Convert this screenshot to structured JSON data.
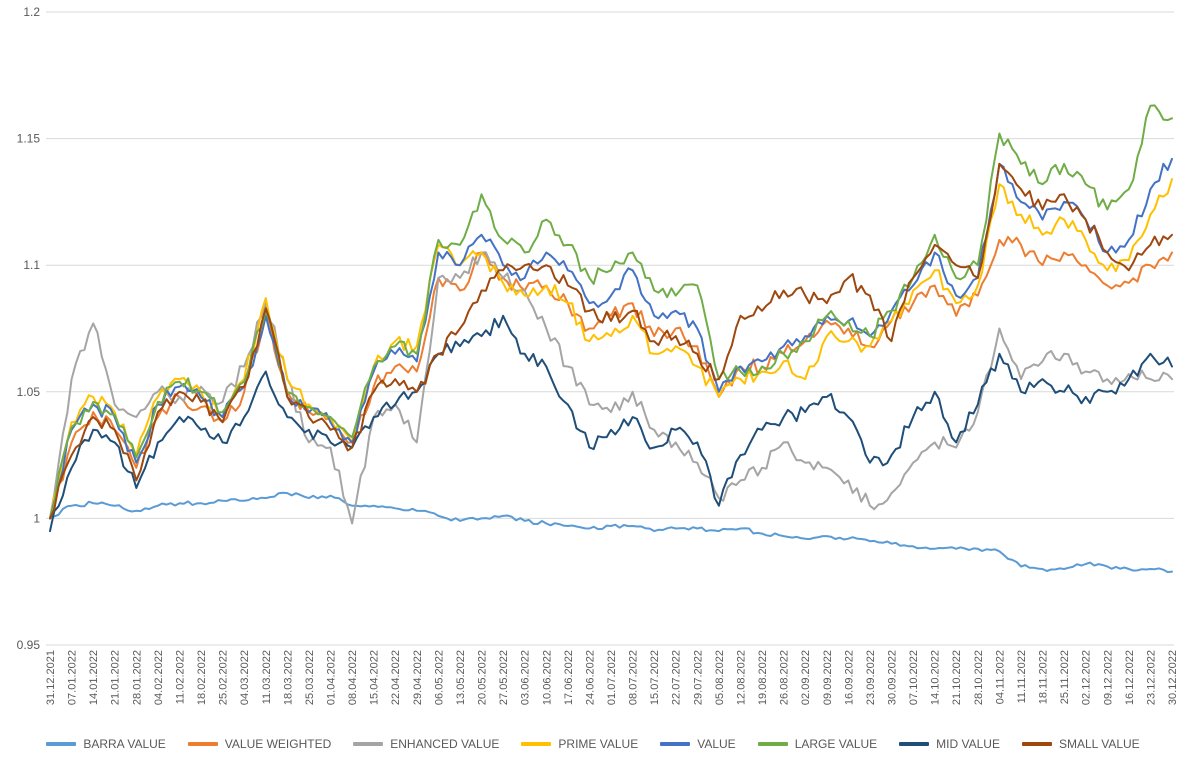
{
  "chart": {
    "background": "#FFFFFF",
    "grid_color": "#D9D9D9",
    "axis_label_color": "#595959",
    "legend_label_color": "#595959"
  },
  "chart_data": {
    "type": "line",
    "title": "",
    "xlabel": "",
    "ylabel": "",
    "grid": "horizontal",
    "legend_position": "bottom",
    "x_tick_rotation": -90,
    "ylim": [
      0.95,
      1.2
    ],
    "y_ticks": [
      0.95,
      1.0,
      1.05,
      1.1,
      1.15,
      1.2
    ],
    "y_tick_labels": [
      "0.95",
      "1",
      "1.05",
      "1.1",
      "1.15",
      "1.2"
    ],
    "x": [
      "31.12.2021",
      "07.01.2022",
      "14.01.2022",
      "21.01.2022",
      "28.01.2022",
      "04.02.2022",
      "11.02.2022",
      "18.02.2022",
      "25.02.2022",
      "04.03.2022",
      "11.03.2022",
      "18.03.2022",
      "25.03.2022",
      "01.04.2022",
      "08.04.2022",
      "15.04.2022",
      "22.04.2022",
      "29.04.2022",
      "06.05.2022",
      "13.05.2022",
      "20.05.2022",
      "27.05.2022",
      "03.06.2022",
      "10.06.2022",
      "17.06.2022",
      "24.06.2022",
      "01.07.2022",
      "08.07.2022",
      "15.07.2022",
      "22.07.2022",
      "29.07.2022",
      "05.08.2022",
      "12.08.2022",
      "19.08.2022",
      "26.08.2022",
      "02.09.2022",
      "09.09.2022",
      "16.09.2022",
      "23.09.2022",
      "30.09.2022",
      "07.10.2022",
      "14.10.2022",
      "21.10.2022",
      "28.10.2022",
      "04.11.2022",
      "11.11.2022",
      "18.11.2022",
      "25.11.2022",
      "02.12.2022",
      "09.12.2022",
      "16.12.2022",
      "23.12.2022",
      "30.12.2022"
    ],
    "series": [
      {
        "name": "BARRA VALUE",
        "color": "#5B9BD5",
        "values": [
          1.0,
          1.005,
          1.006,
          1.005,
          1.003,
          1.005,
          1.006,
          1.006,
          1.007,
          1.007,
          1.008,
          1.01,
          1.008,
          1.009,
          1.005,
          1.005,
          1.004,
          1.003,
          1.001,
          0.999,
          1.0,
          1.001,
          0.999,
          0.998,
          0.997,
          0.996,
          0.997,
          0.997,
          0.995,
          0.996,
          0.996,
          0.995,
          0.996,
          0.994,
          0.993,
          0.992,
          0.993,
          0.992,
          0.991,
          0.99,
          0.989,
          0.988,
          0.988,
          0.988,
          0.987,
          0.981,
          0.98,
          0.98,
          0.982,
          0.981,
          0.98,
          0.98,
          0.979
        ]
      },
      {
        "name": "VALUE WEIGHTED",
        "color": "#ED7D31",
        "values": [
          1.0,
          1.03,
          1.042,
          1.035,
          1.02,
          1.04,
          1.048,
          1.044,
          1.038,
          1.05,
          1.08,
          1.05,
          1.042,
          1.04,
          1.03,
          1.052,
          1.06,
          1.058,
          1.095,
          1.09,
          1.105,
          1.095,
          1.09,
          1.092,
          1.085,
          1.075,
          1.08,
          1.085,
          1.072,
          1.075,
          1.068,
          1.048,
          1.06,
          1.06,
          1.065,
          1.07,
          1.078,
          1.075,
          1.068,
          1.078,
          1.085,
          1.092,
          1.08,
          1.088,
          1.11,
          1.108,
          1.1,
          1.105,
          1.1,
          1.092,
          1.093,
          1.1,
          1.105
        ]
      },
      {
        "name": "ENHANCED VALUE",
        "color": "#A5A5A5",
        "values": [
          1.0,
          1.055,
          1.077,
          1.045,
          1.04,
          1.05,
          1.048,
          1.052,
          1.046,
          1.06,
          1.085,
          1.055,
          1.03,
          1.028,
          0.998,
          1.04,
          1.045,
          1.03,
          1.095,
          1.095,
          1.105,
          1.095,
          1.09,
          1.075,
          1.06,
          1.045,
          1.042,
          1.05,
          1.035,
          1.03,
          1.022,
          1.008,
          1.015,
          1.02,
          1.03,
          1.022,
          1.02,
          1.015,
          1.005,
          1.01,
          1.022,
          1.03,
          1.028,
          1.042,
          1.075,
          1.055,
          1.062,
          1.065,
          1.058,
          1.055,
          1.057,
          1.055,
          1.055
        ]
      },
      {
        "name": "PRIME VALUE",
        "color": "#FFC000",
        "values": [
          1.0,
          1.038,
          1.048,
          1.042,
          1.025,
          1.048,
          1.055,
          1.05,
          1.04,
          1.055,
          1.087,
          1.055,
          1.045,
          1.04,
          1.03,
          1.06,
          1.07,
          1.068,
          1.108,
          1.1,
          1.105,
          1.093,
          1.088,
          1.092,
          1.085,
          1.07,
          1.072,
          1.08,
          1.065,
          1.068,
          1.06,
          1.048,
          1.055,
          1.058,
          1.062,
          1.055,
          1.072,
          1.07,
          1.068,
          1.078,
          1.09,
          1.098,
          1.085,
          1.092,
          1.132,
          1.12,
          1.112,
          1.118,
          1.11,
          1.098,
          1.102,
          1.12,
          1.134
        ]
      },
      {
        "name": "VALUE",
        "color": "#4472C4",
        "values": [
          1.0,
          1.035,
          1.045,
          1.04,
          1.022,
          1.045,
          1.052,
          1.048,
          1.04,
          1.052,
          1.08,
          1.048,
          1.042,
          1.038,
          1.03,
          1.058,
          1.065,
          1.062,
          1.105,
          1.1,
          1.112,
          1.1,
          1.095,
          1.105,
          1.098,
          1.085,
          1.088,
          1.098,
          1.08,
          1.082,
          1.075,
          1.05,
          1.06,
          1.062,
          1.068,
          1.072,
          1.08,
          1.078,
          1.072,
          1.082,
          1.092,
          1.105,
          1.088,
          1.095,
          1.14,
          1.125,
          1.118,
          1.125,
          1.118,
          1.105,
          1.11,
          1.13,
          1.142
        ]
      },
      {
        "name": "LARGE VALUE",
        "color": "#70AD47",
        "values": [
          1.0,
          1.036,
          1.046,
          1.041,
          1.024,
          1.046,
          1.054,
          1.05,
          1.042,
          1.054,
          1.082,
          1.05,
          1.044,
          1.04,
          1.032,
          1.06,
          1.068,
          1.065,
          1.11,
          1.108,
          1.128,
          1.11,
          1.105,
          1.118,
          1.108,
          1.095,
          1.098,
          1.105,
          1.09,
          1.088,
          1.092,
          1.055,
          1.058,
          1.06,
          1.065,
          1.07,
          1.08,
          1.078,
          1.072,
          1.082,
          1.095,
          1.112,
          1.095,
          1.1,
          1.152,
          1.14,
          1.132,
          1.14,
          1.132,
          1.122,
          1.13,
          1.163,
          1.158
        ]
      },
      {
        "name": "MID VALUE",
        "color": "#1F4E79",
        "values": [
          0.995,
          1.02,
          1.035,
          1.03,
          1.012,
          1.03,
          1.04,
          1.035,
          1.03,
          1.04,
          1.058,
          1.04,
          1.035,
          1.03,
          1.028,
          1.04,
          1.045,
          1.05,
          1.065,
          1.068,
          1.072,
          1.08,
          1.065,
          1.06,
          1.045,
          1.028,
          1.035,
          1.04,
          1.028,
          1.035,
          1.03,
          1.005,
          1.025,
          1.035,
          1.04,
          1.042,
          1.048,
          1.04,
          1.022,
          1.025,
          1.04,
          1.05,
          1.03,
          1.045,
          1.065,
          1.05,
          1.055,
          1.05,
          1.048,
          1.05,
          1.055,
          1.065,
          1.06
        ]
      },
      {
        "name": "SMALL VALUE",
        "color": "#9E480E",
        "values": [
          1.0,
          1.025,
          1.04,
          1.035,
          1.015,
          1.042,
          1.05,
          1.046,
          1.038,
          1.052,
          1.083,
          1.048,
          1.04,
          1.035,
          1.028,
          1.05,
          1.055,
          1.05,
          1.065,
          1.075,
          1.09,
          1.098,
          1.1,
          1.1,
          1.092,
          1.082,
          1.078,
          1.082,
          1.07,
          1.072,
          1.065,
          1.055,
          1.08,
          1.082,
          1.09,
          1.088,
          1.085,
          1.095,
          1.088,
          1.07,
          1.095,
          1.108,
          1.1,
          1.095,
          1.14,
          1.13,
          1.122,
          1.128,
          1.118,
          1.105,
          1.098,
          1.108,
          1.112
        ]
      }
    ]
  }
}
